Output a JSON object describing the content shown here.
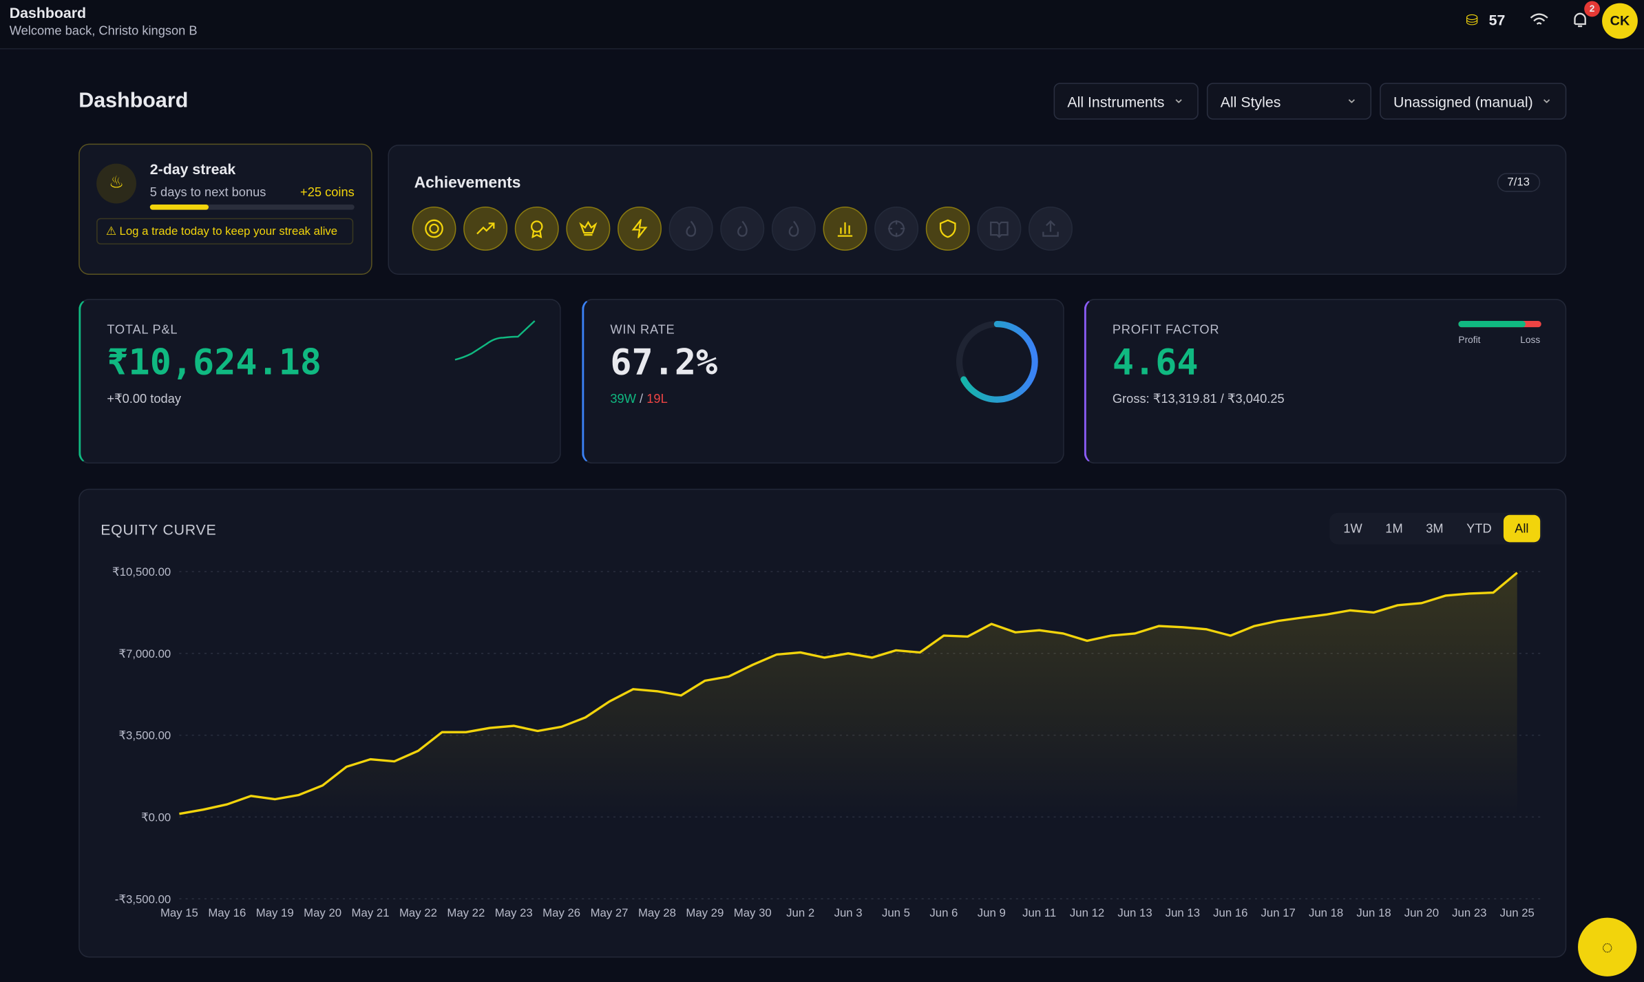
{
  "header": {
    "title": "Dashboard",
    "subtitle": "Welcome back, Christo kingson B",
    "coins": 57,
    "notifications": 2,
    "avatar": "CK"
  },
  "page_title": "Dashboard",
  "filters": [
    "All Instruments",
    "All Styles",
    "Unassigned (manual)"
  ],
  "streak": {
    "title": "2-day streak",
    "subtitle": "5 days to next bonus",
    "bonus": "+25 coins",
    "warning": "Log a trade today to keep your streak alive"
  },
  "achievements": {
    "title": "Achievements",
    "count": "7/13"
  },
  "stats": [
    {
      "label": "TOTAL P&L",
      "value": "₹10,624.18",
      "note": "+₹0.00 today"
    },
    {
      "label": "WIN RATE",
      "value": 67.2,
      "value_label": "67.2%",
      "wins": "39W",
      "separator": "/",
      "losses": "19L"
    },
    {
      "label": "PROFIT FACTOR",
      "value": "4.64",
      "note": "Gross: ₹13,319.81 / ₹3,040.25",
      "legend": [
        "Profit",
        "Loss"
      ]
    }
  ],
  "equity": {
    "title": "EQUITY CURVE",
    "ranges": [
      "1W",
      "1M",
      "3M",
      "YTD",
      "All"
    ],
    "active_range": "All",
    "chart_data": {
      "type": "area",
      "color": "#f2d40c",
      "grid": true,
      "categories": [
        "May 15",
        null,
        "May 16",
        null,
        "May 19",
        null,
        "May 20",
        null,
        "May 21",
        null,
        "May 22",
        null,
        "May 22",
        null,
        "May 23",
        null,
        "May 26",
        null,
        "May 27",
        null,
        "May 28",
        null,
        "May 29",
        null,
        "May 30",
        null,
        "Jun 2",
        null,
        "Jun 3",
        null,
        "Jun 5",
        null,
        "Jun 6",
        null,
        "Jun 9",
        null,
        "Jun 11",
        null,
        "Jun 12",
        null,
        "Jun 13",
        null,
        "Jun 13",
        null,
        "Jun 16",
        null,
        "Jun 17",
        null,
        "Jun 18",
        null,
        "Jun 18",
        null,
        "Jun 20",
        null,
        "Jun 23",
        null,
        "Jun 25"
      ],
      "values": [
        135,
        315,
        540,
        900,
        760,
        940,
        1350,
        2150,
        2470,
        2380,
        2830,
        3630,
        3630,
        3810,
        3900,
        3680,
        3860,
        4260,
        4940,
        5470,
        5380,
        5200,
        5830,
        6010,
        6510,
        6950,
        7040,
        6820,
        7000,
        6820,
        7130,
        7040,
        7760,
        7720,
        8260,
        7900,
        7990,
        7850,
        7540,
        7760,
        7850,
        8170,
        8120,
        8030,
        7760,
        8170,
        8390,
        8530,
        8660,
        8840,
        8750,
        9060,
        9150,
        9470,
        9560,
        9600,
        10450
      ],
      "ylim": [
        -3500,
        10500
      ],
      "yticks": [
        {
          "value": -3500,
          "label": "-₹3,500.00"
        },
        {
          "value": 0,
          "label": "₹0.00"
        },
        {
          "value": 3500,
          "label": "₹3,500.00"
        },
        {
          "value": 7000,
          "label": "₹7,000.00"
        },
        {
          "value": 10500,
          "label": "₹10,500.00"
        }
      ]
    }
  }
}
